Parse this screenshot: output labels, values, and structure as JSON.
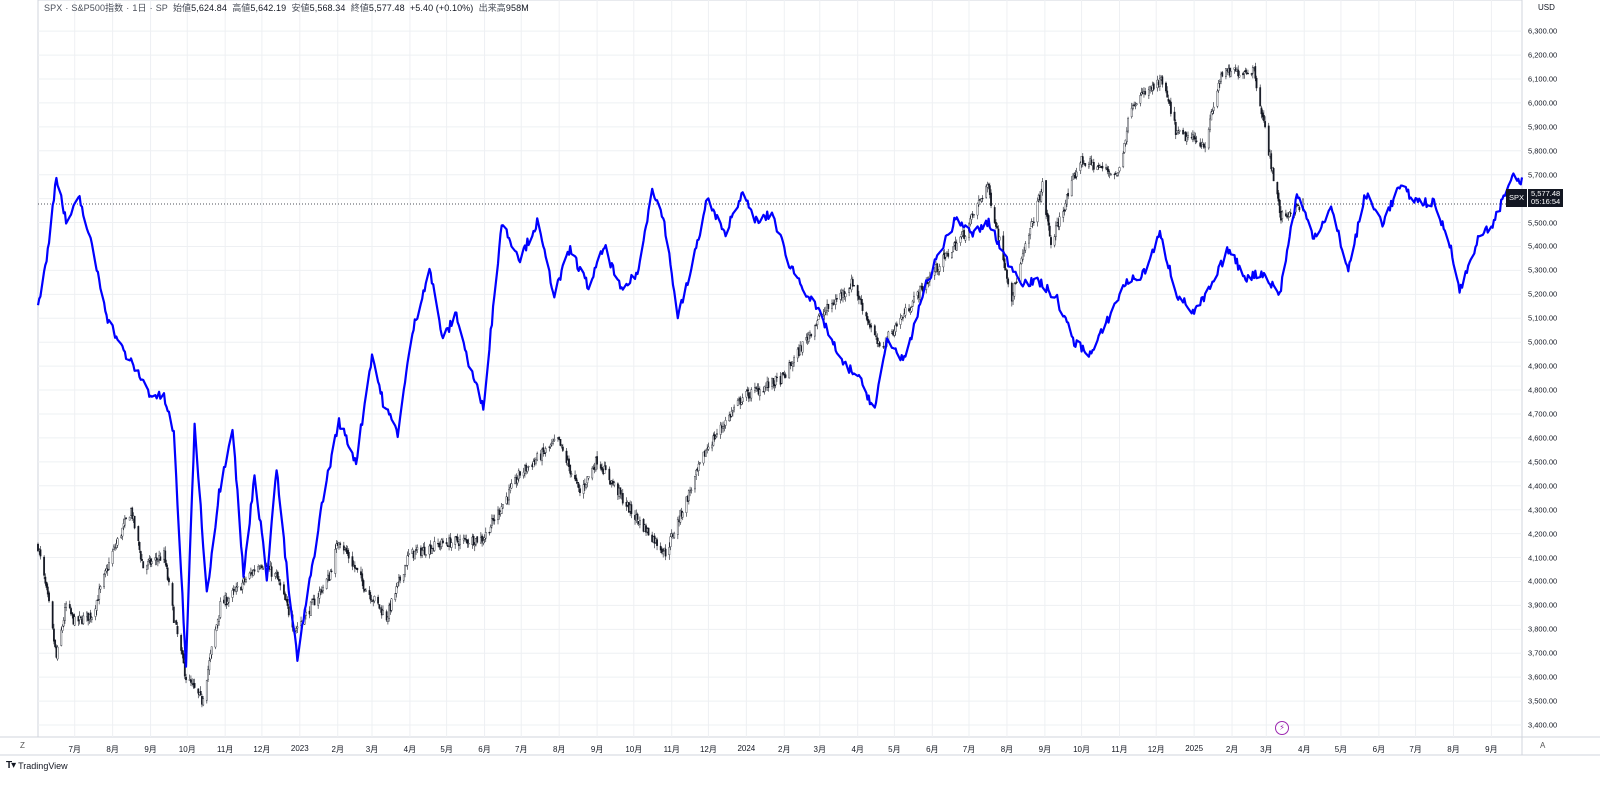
{
  "header": {
    "symbol": "SPX",
    "name": "S&P500指数",
    "interval": "1日",
    "exchange": "SP",
    "open_label": "始値",
    "open": "5,624.84",
    "high_label": "高値",
    "high": "5,642.19",
    "low_label": "安値",
    "low": "5,568.34",
    "close_label": "終値",
    "close": "5,577.48",
    "change": "+5.40 (+0.10%)",
    "volume_label": "出来高",
    "volume": "958M"
  },
  "currency": "USD",
  "price_tag": {
    "symbol": "SPX",
    "price": "5,577.48",
    "countdown": "05:16:54"
  },
  "footer": {
    "brand": "TradingView",
    "zoom_button": "Z",
    "auto_button": "A"
  },
  "colors": {
    "candles": "#131722",
    "overlay_line": "#0000ff",
    "grid": "#eef0f3",
    "event_marker": "#9c27b0"
  },
  "icons": {
    "brand_logo": "tradingview-logo-icon",
    "event_marker": "lightning-icon"
  },
  "chart_data": {
    "type": "line",
    "y_axis": {
      "range": [
        3350,
        6380
      ],
      "ticks": [
        3400,
        3500,
        3600,
        3700,
        3800,
        3900,
        4000,
        4100,
        4200,
        4300,
        4400,
        4500,
        4600,
        4700,
        4800,
        4900,
        5000,
        5100,
        5200,
        5300,
        5400,
        5500,
        5600,
        5700,
        5800,
        5900,
        6000,
        6100,
        6200,
        6300
      ],
      "tick_labels": [
        "3,400.00",
        "3,500.00",
        "3,600.00",
        "3,700.00",
        "3,800.00",
        "3,900.00",
        "4,000.00",
        "4,100.00",
        "4,200.00",
        "4,300.00",
        "4,400.00",
        "4,500.00",
        "4,600.00",
        "4,700.00",
        "4,800.00",
        "4,900.00",
        "5,000.00",
        "5,100.00",
        "5,200.00",
        "5,300.00",
        "5,400.00",
        "5,500.00",
        "5,600.00",
        "5,700.00",
        "5,800.00",
        "5,900.00",
        "6,000.00",
        "6,100.00",
        "6,200.00",
        "6,300.00"
      ]
    },
    "x_axis": {
      "range": [
        "2022-06-01",
        "2025-09-26"
      ],
      "ticks": [
        "2022-07-01",
        "2022-08-01",
        "2022-09-01",
        "2022-10-01",
        "2022-11-01",
        "2022-12-01",
        "2023-01-01",
        "2023-02-01",
        "2023-03-01",
        "2023-04-01",
        "2023-05-01",
        "2023-06-01",
        "2023-07-01",
        "2023-08-01",
        "2023-09-01",
        "2023-10-01",
        "2023-11-01",
        "2023-12-01",
        "2024-01-01",
        "2024-02-01",
        "2024-03-01",
        "2024-04-01",
        "2024-05-01",
        "2024-06-01",
        "2024-07-01",
        "2024-08-01",
        "2024-09-01",
        "2024-10-01",
        "2024-11-01",
        "2024-12-01",
        "2025-01-01",
        "2025-02-01",
        "2025-03-01",
        "2025-04-01",
        "2025-05-01",
        "2025-06-01",
        "2025-07-01",
        "2025-08-01",
        "2025-09-01"
      ],
      "tick_labels": [
        "7月",
        "8月",
        "9月",
        "10月",
        "11月",
        "12月",
        "2023",
        "2月",
        "3月",
        "4月",
        "5月",
        "6月",
        "7月",
        "8月",
        "9月",
        "10月",
        "11月",
        "12月",
        "2024",
        "2月",
        "3月",
        "4月",
        "5月",
        "6月",
        "7月",
        "8月",
        "9月",
        "10月",
        "11月",
        "12月",
        "2025",
        "2月",
        "3月",
        "4月",
        "5月",
        "6月",
        "7月",
        "8月",
        "9月"
      ]
    },
    "grid": true,
    "last_price_line": 5577.48,
    "series": [
      {
        "symbol": "SPX",
        "style": "candlestick",
        "points": [
          [
            "2022-06-01",
            4150
          ],
          [
            "2022-06-10",
            3900
          ],
          [
            "2022-06-16",
            3680
          ],
          [
            "2022-06-24",
            3900
          ],
          [
            "2022-07-01",
            3830
          ],
          [
            "2022-07-15",
            3860
          ],
          [
            "2022-08-01",
            4120
          ],
          [
            "2022-08-16",
            4300
          ],
          [
            "2022-08-26",
            4060
          ],
          [
            "2022-09-12",
            4110
          ],
          [
            "2022-09-20",
            3850
          ],
          [
            "2022-09-30",
            3600
          ],
          [
            "2022-10-13",
            3500
          ],
          [
            "2022-10-28",
            3900
          ],
          [
            "2022-11-10",
            3960
          ],
          [
            "2022-11-30",
            4080
          ],
          [
            "2022-12-13",
            4020
          ],
          [
            "2022-12-28",
            3800
          ],
          [
            "2023-01-06",
            3860
          ],
          [
            "2023-01-25",
            4020
          ],
          [
            "2023-02-02",
            4180
          ],
          [
            "2023-02-24",
            3970
          ],
          [
            "2023-03-13",
            3850
          ],
          [
            "2023-03-31",
            4110
          ],
          [
            "2023-04-28",
            4160
          ],
          [
            "2023-05-31",
            4180
          ],
          [
            "2023-06-30",
            4450
          ],
          [
            "2023-07-31",
            4590
          ],
          [
            "2023-08-18",
            4370
          ],
          [
            "2023-09-01",
            4510
          ],
          [
            "2023-09-29",
            4290
          ],
          [
            "2023-10-27",
            4120
          ],
          [
            "2023-11-30",
            4560
          ],
          [
            "2023-12-29",
            4770
          ],
          [
            "2024-01-31",
            4850
          ],
          [
            "2024-02-29",
            5100
          ],
          [
            "2024-03-28",
            5250
          ],
          [
            "2024-04-19",
            4970
          ],
          [
            "2024-05-31",
            5280
          ],
          [
            "2024-06-28",
            5460
          ],
          [
            "2024-07-16",
            5660
          ],
          [
            "2024-08-05",
            5190
          ],
          [
            "2024-08-30",
            5650
          ],
          [
            "2024-09-06",
            5410
          ],
          [
            "2024-09-30",
            5760
          ],
          [
            "2024-10-31",
            5700
          ],
          [
            "2024-11-11",
            6000
          ],
          [
            "2024-12-06",
            6090
          ],
          [
            "2024-12-18",
            5870
          ],
          [
            "2025-01-10",
            5830
          ],
          [
            "2025-01-23",
            6120
          ],
          [
            "2025-02-19",
            6140
          ],
          [
            "2025-03-13",
            5520
          ],
          [
            "2025-03-31",
            5580
          ]
        ]
      },
      {
        "style": "line",
        "points": [
          [
            "2022-06-01",
            5150
          ],
          [
            "2022-06-08",
            5340
          ],
          [
            "2022-06-16",
            5700
          ],
          [
            "2022-06-24",
            5500
          ],
          [
            "2022-07-05",
            5600
          ],
          [
            "2022-07-15",
            5400
          ],
          [
            "2022-07-28",
            5100
          ],
          [
            "2022-08-10",
            4960
          ],
          [
            "2022-08-22",
            4870
          ],
          [
            "2022-09-01",
            4780
          ],
          [
            "2022-09-12",
            4770
          ],
          [
            "2022-09-20",
            4620
          ],
          [
            "2022-09-30",
            3650
          ],
          [
            "2022-10-07",
            4660
          ],
          [
            "2022-10-17",
            3950
          ],
          [
            "2022-10-27",
            4370
          ],
          [
            "2022-11-07",
            4650
          ],
          [
            "2022-11-16",
            4020
          ],
          [
            "2022-11-25",
            4450
          ],
          [
            "2022-12-05",
            4020
          ],
          [
            "2022-12-13",
            4470
          ],
          [
            "2022-12-23",
            3960
          ],
          [
            "2022-12-30",
            3680
          ],
          [
            "2023-01-12",
            4090
          ],
          [
            "2023-01-20",
            4350
          ],
          [
            "2023-02-02",
            4670
          ],
          [
            "2023-02-16",
            4500
          ],
          [
            "2023-03-01",
            4950
          ],
          [
            "2023-03-10",
            4750
          ],
          [
            "2023-03-22",
            4620
          ],
          [
            "2023-04-03",
            5040
          ],
          [
            "2023-04-17",
            5310
          ],
          [
            "2023-04-28",
            5010
          ],
          [
            "2023-05-09",
            5120
          ],
          [
            "2023-05-19",
            4910
          ],
          [
            "2023-05-31",
            4730
          ],
          [
            "2023-06-15",
            5500
          ],
          [
            "2023-06-30",
            5350
          ],
          [
            "2023-07-14",
            5500
          ],
          [
            "2023-07-28",
            5200
          ],
          [
            "2023-08-10",
            5390
          ],
          [
            "2023-08-25",
            5230
          ],
          [
            "2023-09-07",
            5400
          ],
          [
            "2023-09-21",
            5210
          ],
          [
            "2023-10-05",
            5300
          ],
          [
            "2023-10-16",
            5650
          ],
          [
            "2023-10-26",
            5500
          ],
          [
            "2023-11-06",
            5110
          ],
          [
            "2023-11-16",
            5280
          ],
          [
            "2023-11-30",
            5600
          ],
          [
            "2023-12-14",
            5450
          ],
          [
            "2023-12-28",
            5620
          ],
          [
            "2024-01-10",
            5500
          ],
          [
            "2024-01-22",
            5540
          ],
          [
            "2024-02-05",
            5330
          ],
          [
            "2024-02-20",
            5200
          ],
          [
            "2024-03-04",
            5090
          ],
          [
            "2024-03-18",
            4920
          ],
          [
            "2024-04-01",
            4860
          ],
          [
            "2024-04-15",
            4720
          ],
          [
            "2024-04-25",
            5010
          ],
          [
            "2024-05-10",
            4920
          ],
          [
            "2024-05-24",
            5200
          ],
          [
            "2024-06-07",
            5380
          ],
          [
            "2024-06-21",
            5520
          ],
          [
            "2024-07-03",
            5450
          ],
          [
            "2024-07-17",
            5500
          ],
          [
            "2024-07-31",
            5350
          ],
          [
            "2024-08-14",
            5250
          ],
          [
            "2024-08-28",
            5250
          ],
          [
            "2024-09-11",
            5180
          ],
          [
            "2024-09-25",
            5000
          ],
          [
            "2024-10-09",
            4950
          ],
          [
            "2024-10-23",
            5100
          ],
          [
            "2024-11-06",
            5250
          ],
          [
            "2024-11-20",
            5280
          ],
          [
            "2024-12-04",
            5450
          ],
          [
            "2024-12-18",
            5200
          ],
          [
            "2025-01-01",
            5120
          ],
          [
            "2025-01-15",
            5230
          ],
          [
            "2025-01-29",
            5390
          ],
          [
            "2025-02-12",
            5270
          ],
          [
            "2025-02-26",
            5290
          ],
          [
            "2025-03-12",
            5200
          ],
          [
            "2025-03-26",
            5620
          ],
          [
            "2025-04-09",
            5440
          ],
          [
            "2025-04-23",
            5560
          ],
          [
            "2025-05-07",
            5300
          ],
          [
            "2025-05-21",
            5620
          ],
          [
            "2025-06-04",
            5500
          ],
          [
            "2025-06-18",
            5650
          ],
          [
            "2025-07-02",
            5590
          ],
          [
            "2025-07-16",
            5580
          ],
          [
            "2025-07-30",
            5400
          ],
          [
            "2025-08-06",
            5210
          ],
          [
            "2025-08-20",
            5420
          ],
          [
            "2025-09-03",
            5500
          ],
          [
            "2025-09-17",
            5690
          ],
          [
            "2025-09-26",
            5670
          ]
        ]
      }
    ]
  }
}
